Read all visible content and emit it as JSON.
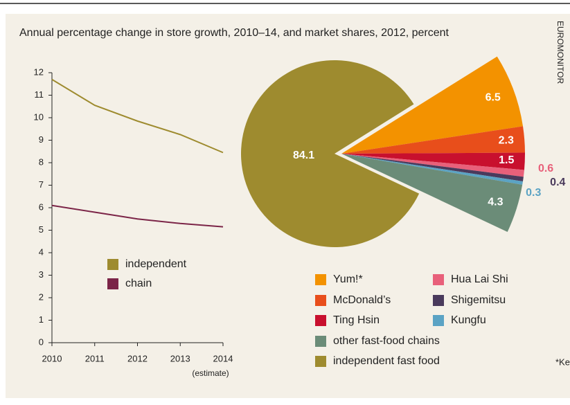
{
  "title": "Annual percentage change in store growth, 2010–14, and market shares, 2012, percent",
  "source": "EUROMONITOR",
  "footnote": "*Ke",
  "chart_data": [
    {
      "type": "line",
      "categories": [
        "2010",
        "2011",
        "2012",
        "2013",
        "2014"
      ],
      "x_annotation": "(estimate)",
      "series": [
        {
          "name": "independent",
          "color": "#9e8b2f",
          "values": [
            11.7,
            10.55,
            9.85,
            9.25,
            8.45
          ]
        },
        {
          "name": "chain",
          "color": "#7b2447",
          "values": [
            6.1,
            5.8,
            5.5,
            5.3,
            5.15
          ]
        }
      ],
      "ylim": [
        0,
        12
      ],
      "yticks": [
        0,
        1,
        2,
        3,
        4,
        5,
        6,
        7,
        8,
        9,
        10,
        11,
        12
      ]
    },
    {
      "type": "pie",
      "categories": [
        "Yum!*",
        "McDonald’s",
        "Ting Hsin",
        "Hua Lai Shi",
        "Shigemitsu",
        "Kungfu",
        "other fast-food chains",
        "independent fast food"
      ],
      "values": [
        6.5,
        2.3,
        1.5,
        0.6,
        0.4,
        0.3,
        4.3,
        84.1
      ],
      "colors": [
        "#f39200",
        "#e84e1b",
        "#c8102e",
        "#e8607a",
        "#4a3a5c",
        "#5ba3c4",
        "#6b8c78",
        "#9e8b2f"
      ]
    }
  ]
}
